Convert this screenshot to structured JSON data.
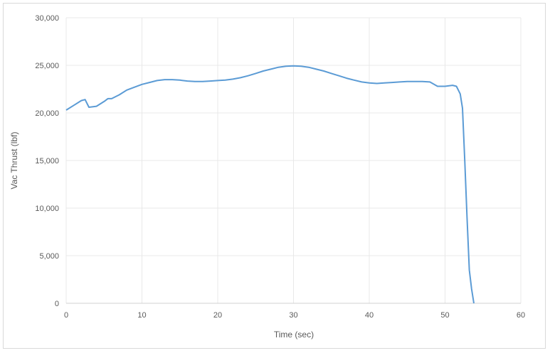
{
  "chart_data": {
    "type": "line",
    "xlabel": "Time (sec)",
    "ylabel": "Vac Thrust (lbf)",
    "xlim": [
      0,
      60
    ],
    "ylim": [
      0,
      30000
    ],
    "xticks": [
      0,
      10,
      20,
      30,
      40,
      50,
      60
    ],
    "xtick_labels": [
      "0",
      "10",
      "20",
      "30",
      "40",
      "50",
      "60"
    ],
    "yticks": [
      0,
      5000,
      10000,
      15000,
      20000,
      25000,
      30000
    ],
    "ytick_labels": [
      "0",
      "5,000",
      "10,000",
      "15,000",
      "20,000",
      "25,000",
      "30,000"
    ],
    "grid": true,
    "line_color": "#5b9bd5",
    "series": [
      {
        "x": [
          0,
          1,
          2,
          2.5,
          3,
          4,
          5,
          5.5,
          6,
          7,
          8,
          9,
          10,
          11,
          12,
          13,
          14,
          15,
          16,
          17,
          18,
          19,
          20,
          21,
          22,
          23,
          24,
          25,
          26,
          27,
          28,
          29,
          30,
          31,
          32,
          33,
          34,
          35,
          36,
          37,
          38,
          39,
          40,
          41,
          42,
          43,
          44,
          45,
          46,
          47,
          48,
          49,
          50,
          51,
          51.5,
          52,
          52.3,
          52.6,
          52.9,
          53.2,
          53.5,
          53.8
        ],
        "y": [
          20300,
          20800,
          21300,
          21400,
          20600,
          20700,
          21200,
          21500,
          21500,
          21900,
          22400,
          22700,
          23000,
          23200,
          23400,
          23500,
          23500,
          23450,
          23350,
          23300,
          23300,
          23350,
          23400,
          23450,
          23550,
          23700,
          23900,
          24150,
          24400,
          24600,
          24800,
          24900,
          24950,
          24900,
          24800,
          24600,
          24400,
          24150,
          23900,
          23650,
          23450,
          23250,
          23150,
          23100,
          23150,
          23200,
          23250,
          23300,
          23300,
          23300,
          23250,
          22800,
          22800,
          22900,
          22800,
          22000,
          20500,
          15000,
          9000,
          3500,
          1500,
          0
        ]
      }
    ]
  }
}
